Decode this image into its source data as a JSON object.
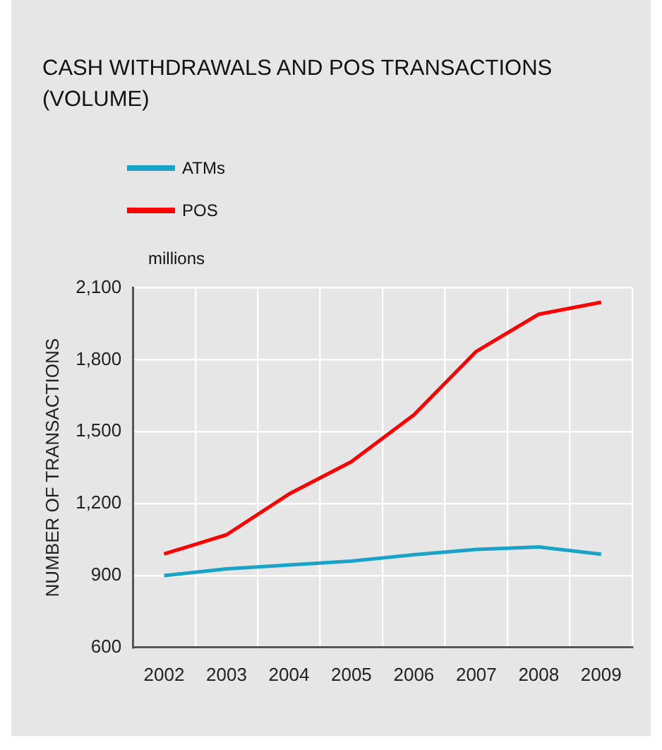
{
  "chart_data": {
    "type": "line",
    "title": "CASH WITHDRAWALS AND POS TRANSACTIONS (VOLUME)",
    "ylabel": "NUMBER OF TRANSACTIONS",
    "annotations": [
      "millions"
    ],
    "categories": [
      "2002",
      "2003",
      "2004",
      "2005",
      "2006",
      "2007",
      "2008",
      "2009"
    ],
    "series": [
      {
        "name": "ATMs",
        "color": "#1aa3c8",
        "values": [
          900,
          928,
          944,
          960,
          987,
          1009,
          1019,
          989
        ]
      },
      {
        "name": "POS",
        "color": "#ff0000",
        "values": [
          990,
          1070,
          1240,
          1375,
          1570,
          1835,
          1990,
          2040
        ]
      }
    ],
    "ylim": [
      600,
      2100
    ],
    "yticks": [
      {
        "value": 600,
        "label": "600"
      },
      {
        "value": 900,
        "label": "900"
      },
      {
        "value": 1200,
        "label": "1,200"
      },
      {
        "value": 1500,
        "label": "1,500"
      },
      {
        "value": 1800,
        "label": "1,800"
      },
      {
        "value": 2100,
        "label": "2,100"
      }
    ],
    "grid": true,
    "legend": "top left",
    "marker": "none",
    "line_style": "solid"
  }
}
